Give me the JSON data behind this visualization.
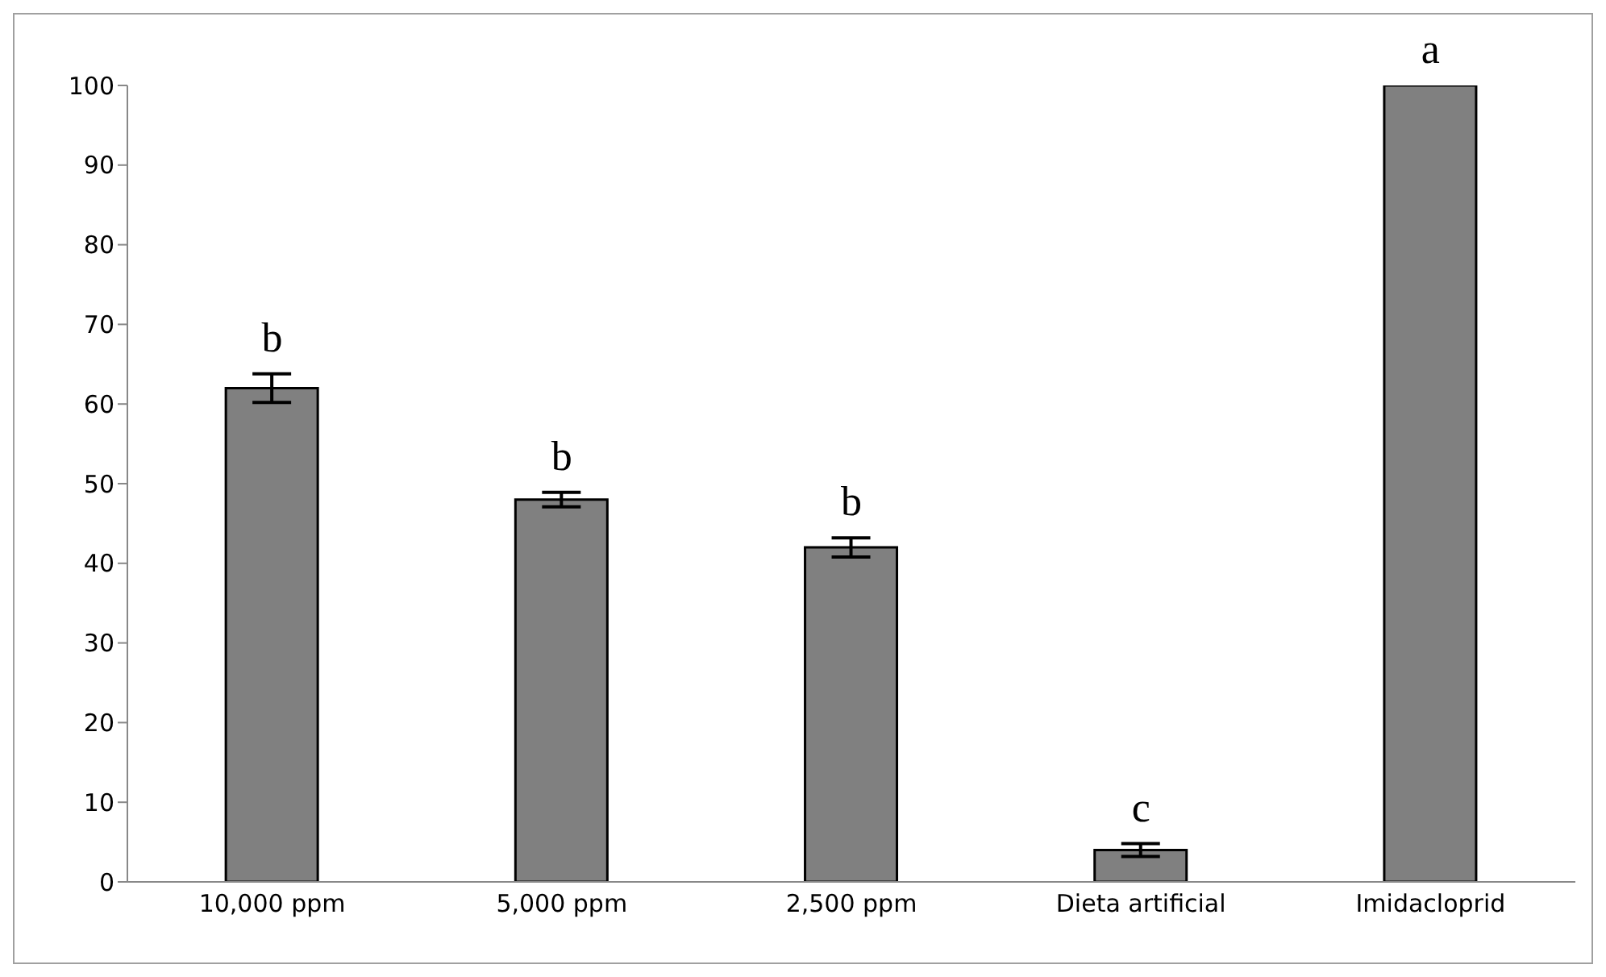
{
  "chart_data": {
    "type": "bar",
    "categories": [
      "10,000 ppm",
      "5,000 ppm",
      "2,500 ppm",
      "Dieta artificial",
      "Imidacloprid"
    ],
    "values": [
      62,
      48,
      42,
      4,
      100
    ],
    "errors": [
      1.8,
      0.9,
      1.2,
      0.8,
      null
    ],
    "color": "#808080",
    "ylim": [
      0,
      100
    ],
    "yticks": [
      0,
      10,
      20,
      30,
      40,
      50,
      60,
      70,
      80,
      90,
      100
    ],
    "grid": false,
    "legend": false,
    "annotations": [
      {
        "text": "b",
        "x": "10,000 ppm",
        "y": 63.8
      },
      {
        "text": "b",
        "x": "5,000 ppm",
        "y": 48.9
      },
      {
        "text": "b",
        "x": "2,500 ppm",
        "y": 43.2
      },
      {
        "text": "c",
        "x": "Dieta artificial",
        "y": 4.8
      },
      {
        "text": "a",
        "x": "Imidacloprid",
        "y": 100
      }
    ]
  }
}
